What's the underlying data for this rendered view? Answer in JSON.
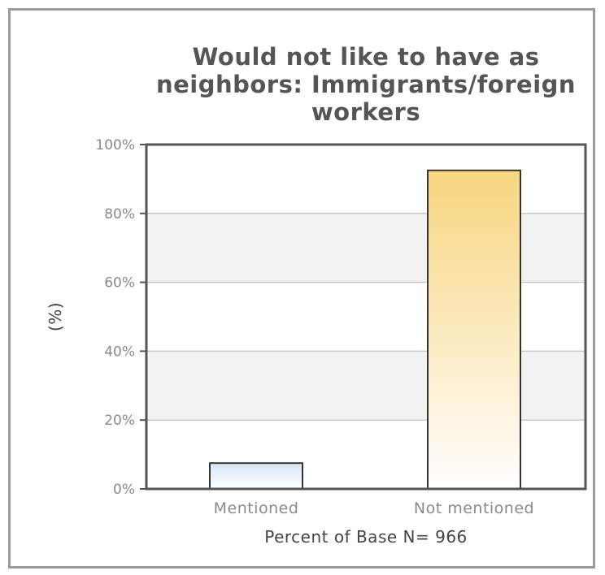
{
  "chart_data": {
    "type": "bar",
    "title_lines": [
      "Would not like to have as",
      "neighbors: Immigrants/foreign",
      "workers"
    ],
    "categories": [
      "Mentioned",
      "Not mentioned"
    ],
    "values": [
      7.5,
      92.5
    ],
    "ylabel": "(%)",
    "xlabel": "Percent of Base N= 966",
    "ylim": [
      0,
      100
    ],
    "yticks": [
      "0%",
      "20%",
      "40%",
      "60%",
      "80%",
      "100%"
    ],
    "grid": true,
    "legend": "none",
    "colors": {
      "mentioned_top": "#d7e6f5",
      "mentioned_bottom": "#ffffff",
      "not_mentioned_top": "#f8d57e",
      "not_mentioned_bottom": "#ffffff",
      "band": "#f2f2f2"
    }
  }
}
